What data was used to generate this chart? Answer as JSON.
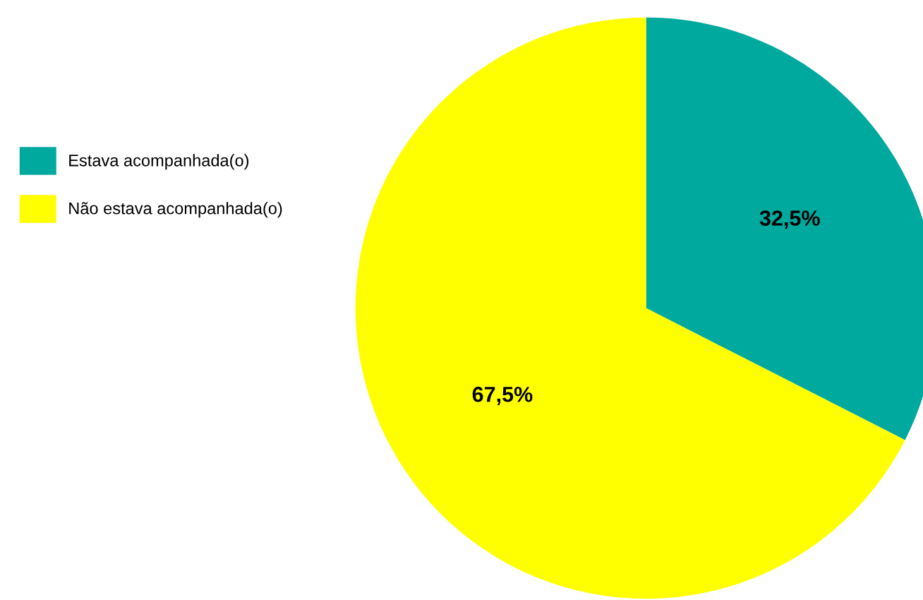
{
  "chart_data": {
    "type": "pie",
    "categories": [
      "Estava acompanhada(o)",
      "Não estava acompanhada(o)"
    ],
    "values": [
      32.5,
      67.5
    ],
    "colors": [
      "#00a99d",
      "#ffff00"
    ],
    "value_labels": [
      "32,5%",
      "67,5%"
    ],
    "legend": "top left"
  }
}
